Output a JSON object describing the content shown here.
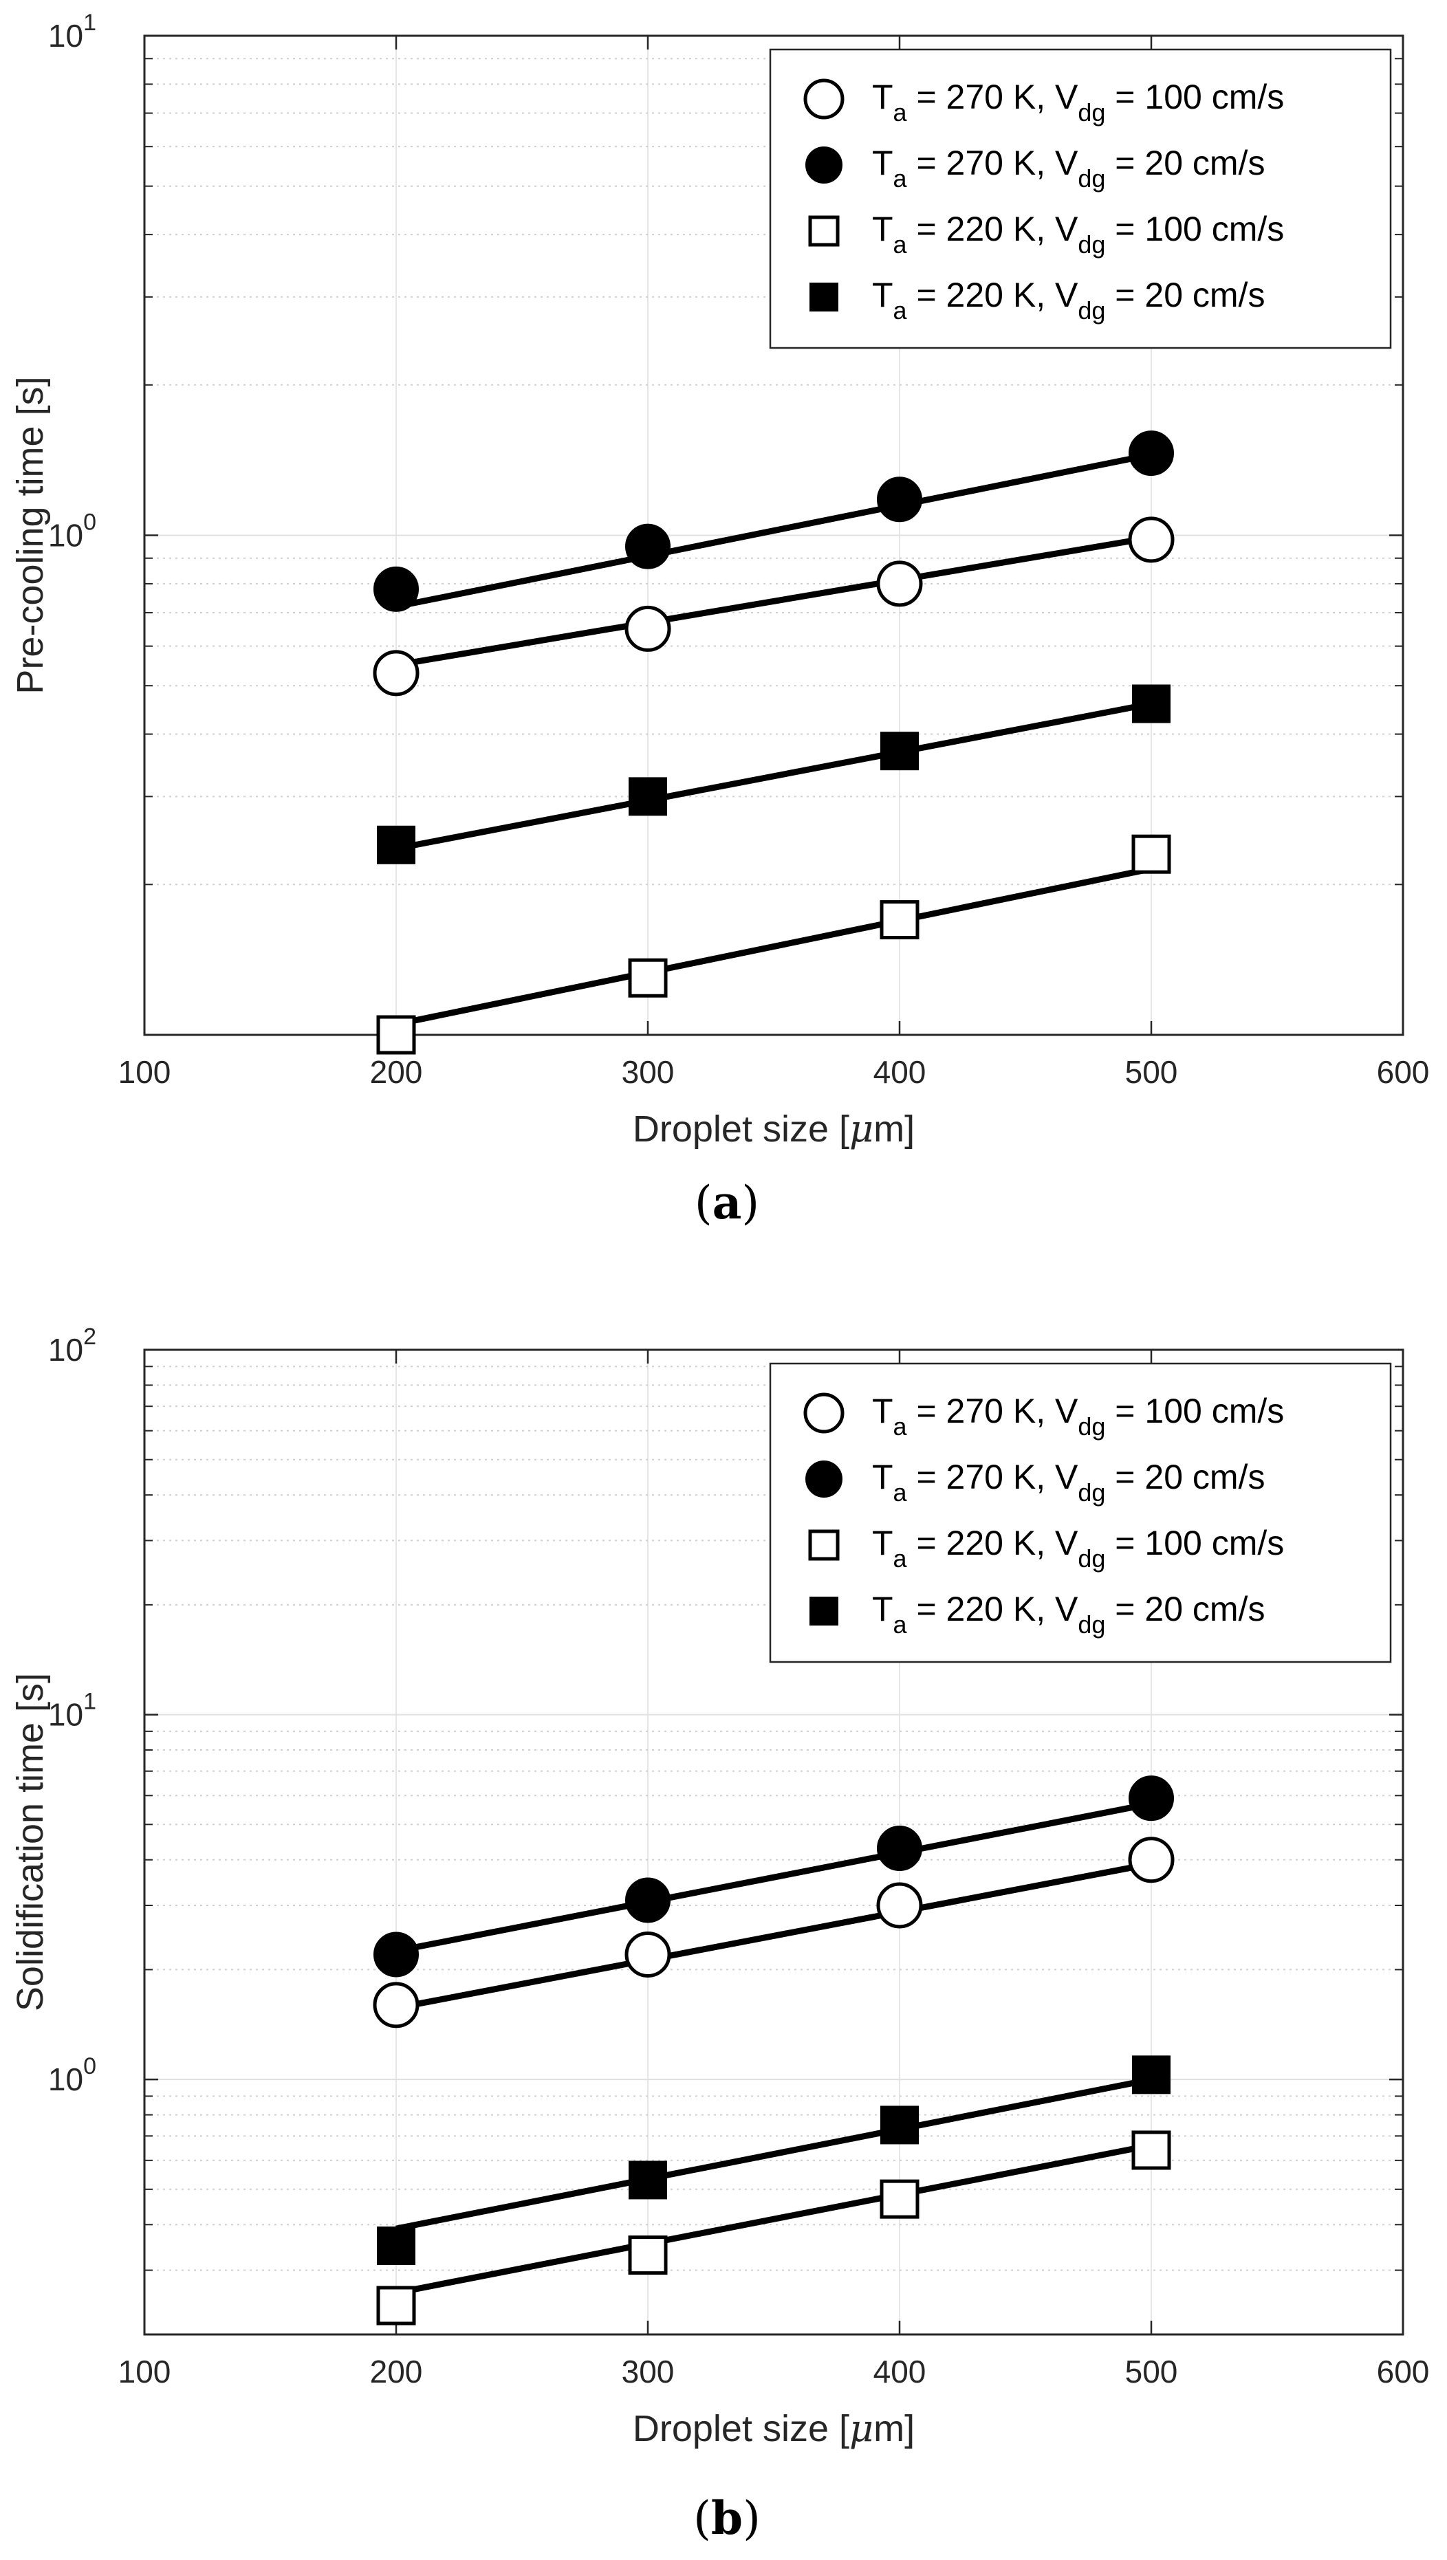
{
  "chart_data": [
    {
      "type": "scatter",
      "panel_label": "a",
      "xlabel_text": "Droplet size [",
      "xlabel_unit_mu": "μ",
      "xlabel_unit_rest": "m]",
      "ylabel": "Pre-cooling time [s]",
      "xlim": [
        100,
        600
      ],
      "ylim": [
        0.1,
        10
      ],
      "yscale": "log",
      "x_ticks": [
        "100",
        "200",
        "300",
        "400",
        "500",
        "600"
      ],
      "y_ticks": [
        {
          "base": "10",
          "exp": "0",
          "value": 1
        },
        {
          "base": "10",
          "exp": "1",
          "value": 10
        }
      ],
      "grid": true,
      "legend_position": "top-right",
      "x": [
        200,
        300,
        400,
        500
      ],
      "series": [
        {
          "name": "T_a = 270 K, V_dg = 100 cm/s",
          "marker": "circle-open",
          "values": [
            0.53,
            0.65,
            0.8,
            0.98
          ],
          "fit": [
            0.55,
            0.99
          ]
        },
        {
          "name": "T_a = 270 K, V_dg = 20 cm/s",
          "marker": "circle-filled",
          "values": [
            0.78,
            0.95,
            1.18,
            1.46
          ],
          "fit": [
            0.72,
            1.45
          ]
        },
        {
          "name": "T_a = 220 K, V_dg = 100 cm/s",
          "marker": "square-open",
          "values": [
            0.1,
            0.13,
            0.17,
            0.23
          ],
          "fit": [
            0.105,
            0.215
          ]
        },
        {
          "name": "T_a = 220 K, V_dg = 20 cm/s",
          "marker": "square-filled",
          "values": [
            0.24,
            0.3,
            0.37,
            0.46
          ],
          "fit": [
            0.236,
            0.46
          ]
        }
      ],
      "legend": [
        {
          "a": "T",
          "sa": "a",
          "b": " = 270 K, V",
          "sb": "dg",
          "c": " = 100 cm/s"
        },
        {
          "a": "T",
          "sa": "a",
          "b": " = 270 K, V",
          "sb": "dg",
          "c": " = 20 cm/s"
        },
        {
          "a": "T",
          "sa": "a",
          "b": " = 220 K, V",
          "sb": "dg",
          "c": " = 100 cm/s"
        },
        {
          "a": "T",
          "sa": "a",
          "b": " = 220 K, V",
          "sb": "dg",
          "c": " = 20 cm/s"
        }
      ]
    },
    {
      "type": "scatter",
      "panel_label": "b",
      "xlabel_text": "Droplet size [",
      "xlabel_unit_mu": "μ",
      "xlabel_unit_rest": "m]",
      "ylabel": "Solidification time [s]",
      "xlim": [
        100,
        600
      ],
      "ylim": [
        0.2,
        100
      ],
      "yscale": "log",
      "x_ticks": [
        "100",
        "200",
        "300",
        "400",
        "500",
        "600"
      ],
      "y_ticks": [
        {
          "base": "10",
          "exp": "0",
          "value": 1
        },
        {
          "base": "10",
          "exp": "1",
          "value": 10
        },
        {
          "base": "10",
          "exp": "2",
          "value": 100
        }
      ],
      "grid": true,
      "legend_position": "top-right",
      "x": [
        200,
        300,
        400,
        500
      ],
      "series": [
        {
          "name": "T_a = 270 K, V_dg = 100 cm/s",
          "marker": "circle-open",
          "values": [
            1.6,
            2.2,
            3.0,
            4.0
          ],
          "fit": [
            1.57,
            3.9
          ]
        },
        {
          "name": "T_a = 270 K, V_dg = 20 cm/s",
          "marker": "circle-filled",
          "values": [
            2.2,
            3.1,
            4.3,
            5.9
          ],
          "fit": [
            2.25,
            5.7
          ]
        },
        {
          "name": "T_a = 220 K, V_dg = 100 cm/s",
          "marker": "square-open",
          "values": [
            0.24,
            0.33,
            0.47,
            0.64
          ],
          "fit": [
            0.26,
            0.66
          ]
        },
        {
          "name": "T_a = 220 K, V_dg = 20 cm/s",
          "marker": "square-filled",
          "values": [
            0.35,
            0.53,
            0.75,
            1.03
          ],
          "fit": [
            0.39,
            1.0
          ]
        }
      ],
      "legend": [
        {
          "a": "T",
          "sa": "a",
          "b": " = 270 K, V",
          "sb": "dg",
          "c": " = 100 cm/s"
        },
        {
          "a": "T",
          "sa": "a",
          "b": " = 270 K, V",
          "sb": "dg",
          "c": " = 20 cm/s"
        },
        {
          "a": "T",
          "sa": "a",
          "b": " = 220 K, V",
          "sb": "dg",
          "c": " = 100 cm/s"
        },
        {
          "a": "T",
          "sa": "a",
          "b": " = 220 K, V",
          "sb": "dg",
          "c": " = 20 cm/s"
        }
      ]
    }
  ]
}
